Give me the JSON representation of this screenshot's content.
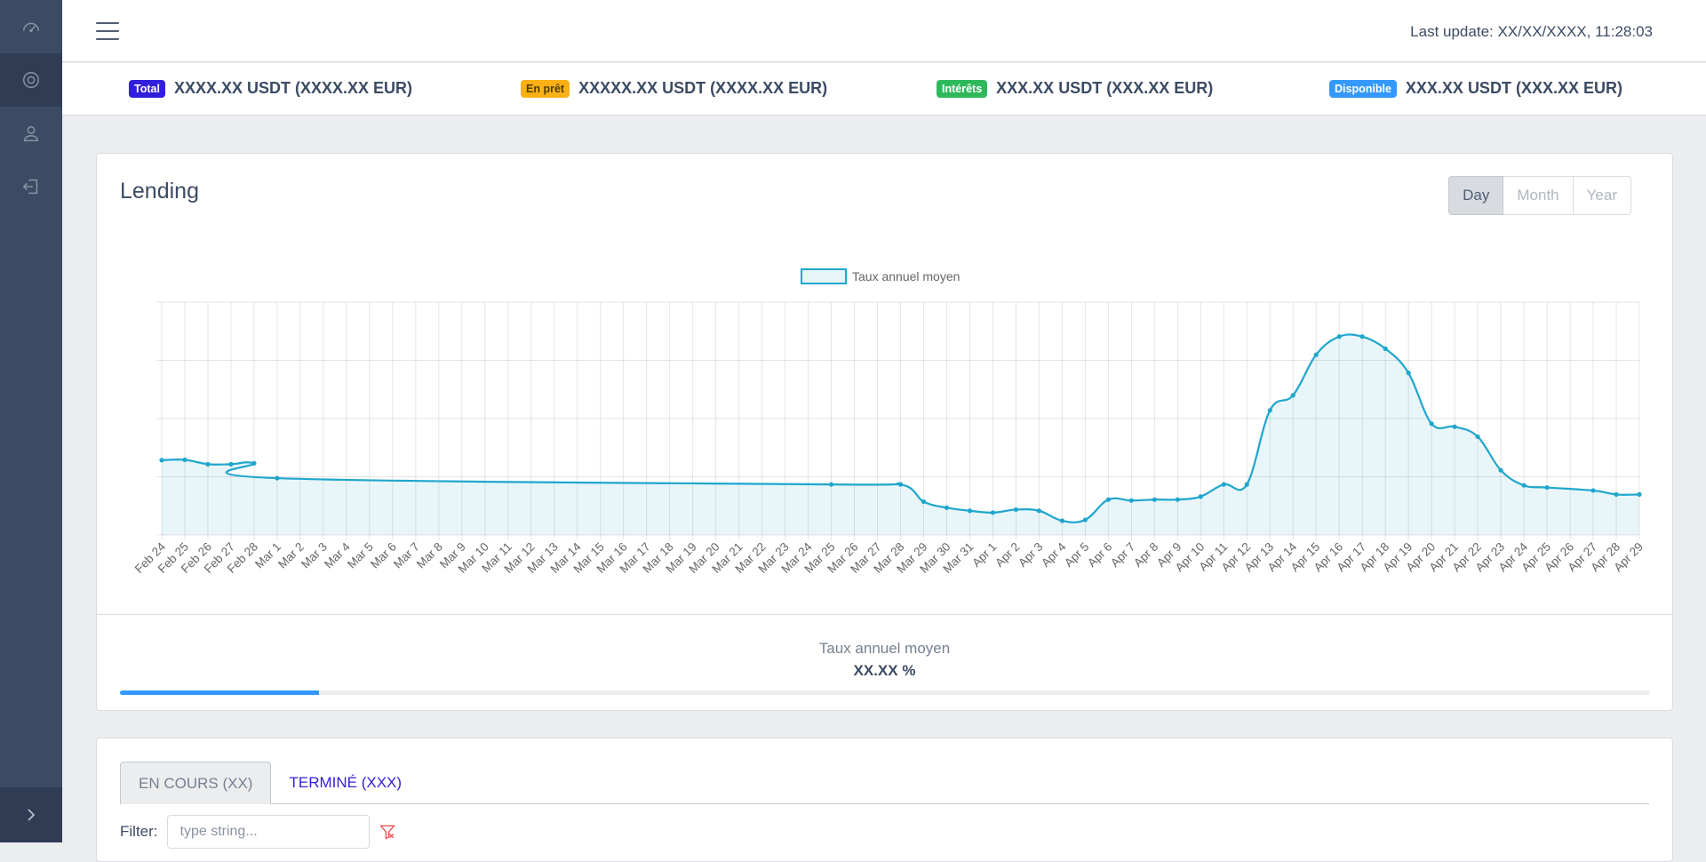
{
  "header": {
    "last_update": "Last update: XX/XX/XXXX, 11:28:03"
  },
  "stats": [
    {
      "badge": "Total",
      "amount": "XXXX.XX USDT (",
      "eur": "XXXX.XX EUR",
      "close": ")"
    },
    {
      "badge": "En prêt",
      "amount": "XXXXX.XX USDT (",
      "eur": "XXXX.XX EUR",
      "close": ")"
    },
    {
      "badge": "Intérêts",
      "amount": "XXX.XX USDT (",
      "eur": "XXX.XX EUR",
      "close": ")"
    },
    {
      "badge": "Disponible",
      "amount": "XXX.XX USDT (",
      "eur": "XXX.XX EUR",
      "close": ")"
    }
  ],
  "lending": {
    "title": "Lending",
    "period_buttons": [
      "Day",
      "Month",
      "Year"
    ],
    "active_period": "Day",
    "footer_label": "Taux annuel moyen",
    "footer_value": "XX.XX %",
    "progress_fraction": 0.13
  },
  "tabs": {
    "items": [
      "EN COURS (XX)",
      "TERMINÉ (XXX)"
    ],
    "filter_label": "Filter:",
    "filter_placeholder": "type string..."
  },
  "colors": {
    "line": "#1fa6cc",
    "fill": "rgba(31,166,204,0.1)"
  },
  "chart_data": {
    "type": "area",
    "legend": [
      "Taux annuel moyen"
    ],
    "legend_position": "top-center",
    "grid": true,
    "y_tick_labels_shown": false,
    "ylim": [
      0,
      100
    ],
    "categories": [
      "Feb 24",
      "Feb 25",
      "Feb 26",
      "Feb 27",
      "Feb 28",
      "Mar 1",
      "Mar 2",
      "Mar 3",
      "Mar 4",
      "Mar 5",
      "Mar 6",
      "Mar 7",
      "Mar 8",
      "Mar 9",
      "Mar 10",
      "Mar 11",
      "Mar 12",
      "Mar 13",
      "Mar 14",
      "Mar 15",
      "Mar 16",
      "Mar 17",
      "Mar 18",
      "Mar 19",
      "Mar 20",
      "Mar 21",
      "Mar 22",
      "Mar 23",
      "Mar 24",
      "Mar 25",
      "Mar 26",
      "Mar 27",
      "Mar 28",
      "Mar 29",
      "Mar 30",
      "Mar 31",
      "Apr 1",
      "Apr 2",
      "Apr 3",
      "Apr 4",
      "Apr 5",
      "Apr 6",
      "Apr 7",
      "Apr 8",
      "Apr 9",
      "Apr 10",
      "Apr 11",
      "Apr 12",
      "Apr 13",
      "Apr 14",
      "Apr 15",
      "Apr 16",
      "Apr 17",
      "Apr 18",
      "Apr 19",
      "Apr 20",
      "Apr 21",
      "Apr 22",
      "Apr 23",
      "Apr 24",
      "Apr 25",
      "Apr 26",
      "Apr 27",
      "Apr 28",
      "Apr 29"
    ],
    "series": [
      {
        "name": "Taux annuel moyen",
        "points": [
          [
            "Feb 24",
            32.1
          ],
          [
            "Feb 25",
            32.3
          ],
          [
            "Feb 26",
            30.4
          ],
          [
            "Feb 27",
            30.4
          ],
          [
            "Feb 28",
            30.8
          ],
          [
            "Mar 1",
            24.4
          ],
          [
            "Mar 25",
            21.7
          ],
          [
            "Mar 28",
            21.7
          ],
          [
            "Mar 29",
            14.3
          ],
          [
            "Mar 30",
            11.7
          ],
          [
            "Mar 31",
            10.4
          ],
          [
            "Apr 1",
            9.6
          ],
          [
            "Apr 2",
            10.9
          ],
          [
            "Apr 3",
            10.4
          ],
          [
            "Apr 4",
            6.1
          ],
          [
            "Apr 5",
            6.5
          ],
          [
            "Apr 6",
            15.2
          ],
          [
            "Apr 7",
            14.8
          ],
          [
            "Apr 8",
            15.2
          ],
          [
            "Apr 9",
            15.2
          ],
          [
            "Apr 10",
            16.5
          ],
          [
            "Apr 11",
            21.7
          ],
          [
            "Apr 12",
            21.7
          ],
          [
            "Apr 13",
            53.5
          ],
          [
            "Apr 14",
            60.0
          ],
          [
            "Apr 15",
            77.4
          ],
          [
            "Apr 16",
            85.2
          ],
          [
            "Apr 17",
            85.2
          ],
          [
            "Apr 18",
            80.0
          ],
          [
            "Apr 19",
            69.6
          ],
          [
            "Apr 20",
            47.8
          ],
          [
            "Apr 21",
            46.5
          ],
          [
            "Apr 22",
            42.2
          ],
          [
            "Apr 23",
            27.8
          ],
          [
            "Apr 24",
            21.3
          ],
          [
            "Apr 25",
            20.4
          ],
          [
            "Apr 27",
            19.1
          ],
          [
            "Apr 28",
            17.4
          ],
          [
            "Apr 29",
            17.4
          ]
        ]
      }
    ]
  }
}
